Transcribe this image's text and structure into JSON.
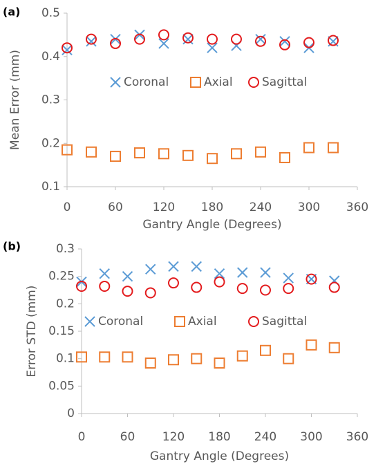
{
  "chart_data": [
    {
      "type": "scatter",
      "label": "(a)",
      "xlabel": "Gantry Angle (Degrees)",
      "ylabel": "Mean Error (mm)",
      "x": [
        0,
        30,
        60,
        90,
        120,
        150,
        180,
        210,
        240,
        270,
        300,
        330
      ],
      "series": [
        {
          "name": "Coronal",
          "color": "#5b9bd5",
          "values": [
            0.415,
            0.435,
            0.44,
            0.45,
            0.43,
            0.44,
            0.42,
            0.425,
            0.44,
            0.435,
            0.42,
            0.435
          ]
        },
        {
          "name": "Axial",
          "color": "#ed7d31",
          "values": [
            0.185,
            0.18,
            0.17,
            0.178,
            0.176,
            0.172,
            0.165,
            0.176,
            0.18,
            0.167,
            0.19,
            0.19
          ]
        },
        {
          "name": "Sagittal",
          "color": "#e31a1c",
          "values": [
            0.42,
            0.44,
            0.43,
            0.44,
            0.45,
            0.443,
            0.44,
            0.44,
            0.435,
            0.427,
            0.432,
            0.437
          ]
        }
      ],
      "xlim": [
        0,
        360
      ],
      "xticks": [
        0,
        60,
        120,
        180,
        240,
        300,
        360
      ],
      "ylim": [
        0.1,
        0.5
      ],
      "yticks": [
        0.1,
        0.2,
        0.3,
        0.4,
        0.5
      ]
    },
    {
      "type": "scatter",
      "label": "(b)",
      "xlabel": "Gantry Angle (Degrees)",
      "ylabel": "Error STD (mm)",
      "x": [
        0,
        30,
        60,
        90,
        120,
        150,
        180,
        210,
        240,
        270,
        300,
        330
      ],
      "series": [
        {
          "name": "Coronal",
          "color": "#5b9bd5",
          "values": [
            0.24,
            0.255,
            0.25,
            0.263,
            0.268,
            0.268,
            0.255,
            0.257,
            0.257,
            0.247,
            0.245,
            0.242
          ]
        },
        {
          "name": "Axial",
          "color": "#ed7d31",
          "values": [
            0.103,
            0.103,
            0.103,
            0.092,
            0.098,
            0.1,
            0.092,
            0.105,
            0.115,
            0.1,
            0.125,
            0.12
          ]
        },
        {
          "name": "Sagittal",
          "color": "#e31a1c",
          "values": [
            0.232,
            0.232,
            0.223,
            0.22,
            0.238,
            0.23,
            0.24,
            0.228,
            0.225,
            0.228,
            0.245,
            0.23
          ]
        }
      ],
      "xlim": [
        0,
        360
      ],
      "xticks": [
        0,
        60,
        120,
        180,
        240,
        300,
        360
      ],
      "ylim": [
        0,
        0.3
      ],
      "yticks": [
        0,
        0.05,
        0.1,
        0.15,
        0.2,
        0.25,
        0.3
      ]
    }
  ]
}
